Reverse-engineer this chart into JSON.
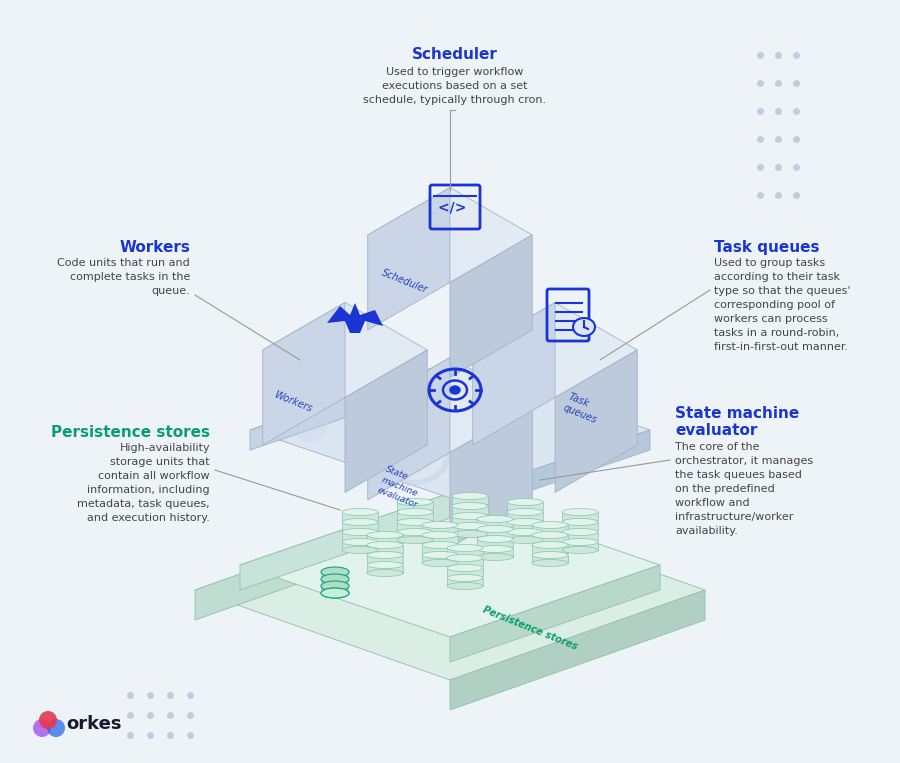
{
  "bg_color": "#eef3f8",
  "title": "Scheduler",
  "title_color": "#1a35d4",
  "scheduler_desc": "Used to trigger workflow\nexecutions based on a set\nschedule, typically through cron.",
  "workers_title": "Workers",
  "workers_title_color": "#1a35d4",
  "workers_desc": "Code units that run and\ncomplete tasks in the\nqueue.",
  "task_queues_title": "Task queues",
  "task_queues_title_color": "#1a35d4",
  "task_queues_desc": "Used to group tasks\naccording to their task\ntype so that the queues'\ncorresponding pool of\nworkers can process\ntasks in a round-robin,\nfirst-in-first-out manner.",
  "persistence_title": "Persistence stores",
  "persistence_title_color": "#0a9e6e",
  "persistence_desc": "High-availability\nstorage units that\ncontain all workflow\ninformation, including\nmetadata, task queues,\nand execution history.",
  "state_machine_title": "State machine\nevaluator",
  "state_machine_title_color": "#1a35d4",
  "state_machine_desc": "The core of the\norchestrator, it manages\nthe task queues based\non the predefined\nworkflow and\ninfrastructure/worker\navailability.",
  "cube_top": "#e2eaf4",
  "cube_left": "#cad6e8",
  "cube_right": "#bccadc",
  "platform_top": "#e0ede8",
  "platform_left": "#c8ddd4",
  "platform_right": "#baced0",
  "plat2_top": "#d4e8de",
  "plat2_left": "#bcd4c8",
  "plat2_right": "#aac8bc",
  "cyl_body": "#d4eae0",
  "cyl_top": "#c0ddd0",
  "cyl_edge": "#8ec8b0",
  "icon_blue": "#1a35d4",
  "icon_light": "#9aaae0",
  "icon_shadow": "#c8d2e8",
  "dot_color": "#c0cedd",
  "line_color": "#999999",
  "text_color": "#444444",
  "persistence_label": "#0a9e6e",
  "orkes_red": "#e8384f",
  "orkes_purple": "#9b3de8",
  "orkes_blue": "#2060e8"
}
